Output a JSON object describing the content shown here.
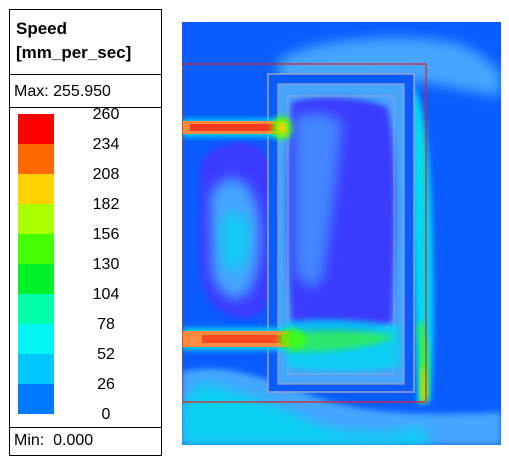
{
  "legend": {
    "title_line1": "Speed",
    "title_line2": "[mm_per_sec]",
    "max_label": "Max: 255.950",
    "min_label": "Min:  0.000",
    "levels": [
      {
        "value": "260",
        "color": "#ff0000"
      },
      {
        "value": "234",
        "color": "#ff6a00"
      },
      {
        "value": "208",
        "color": "#ffd200"
      },
      {
        "value": "182",
        "color": "#aaff00"
      },
      {
        "value": "156",
        "color": "#44ff00"
      },
      {
        "value": "130",
        "color": "#00f02a"
      },
      {
        "value": "104",
        "color": "#00ffaa"
      },
      {
        "value": "78",
        "color": "#00f5f5"
      },
      {
        "value": "52",
        "color": "#00c8ff"
      },
      {
        "value": "26",
        "color": "#0078ff"
      },
      {
        "value": "0",
        "color": "#0000ff"
      }
    ]
  },
  "colors": {
    "background_flow": "#0a5cff",
    "deep_blue": "#3a3aff",
    "light_blue": "#45a5ff",
    "cyan": "#00d8f0",
    "jet_red": "#ff3a20",
    "jet_orange": "#ff8a40",
    "outline_red": "#e02020"
  }
}
